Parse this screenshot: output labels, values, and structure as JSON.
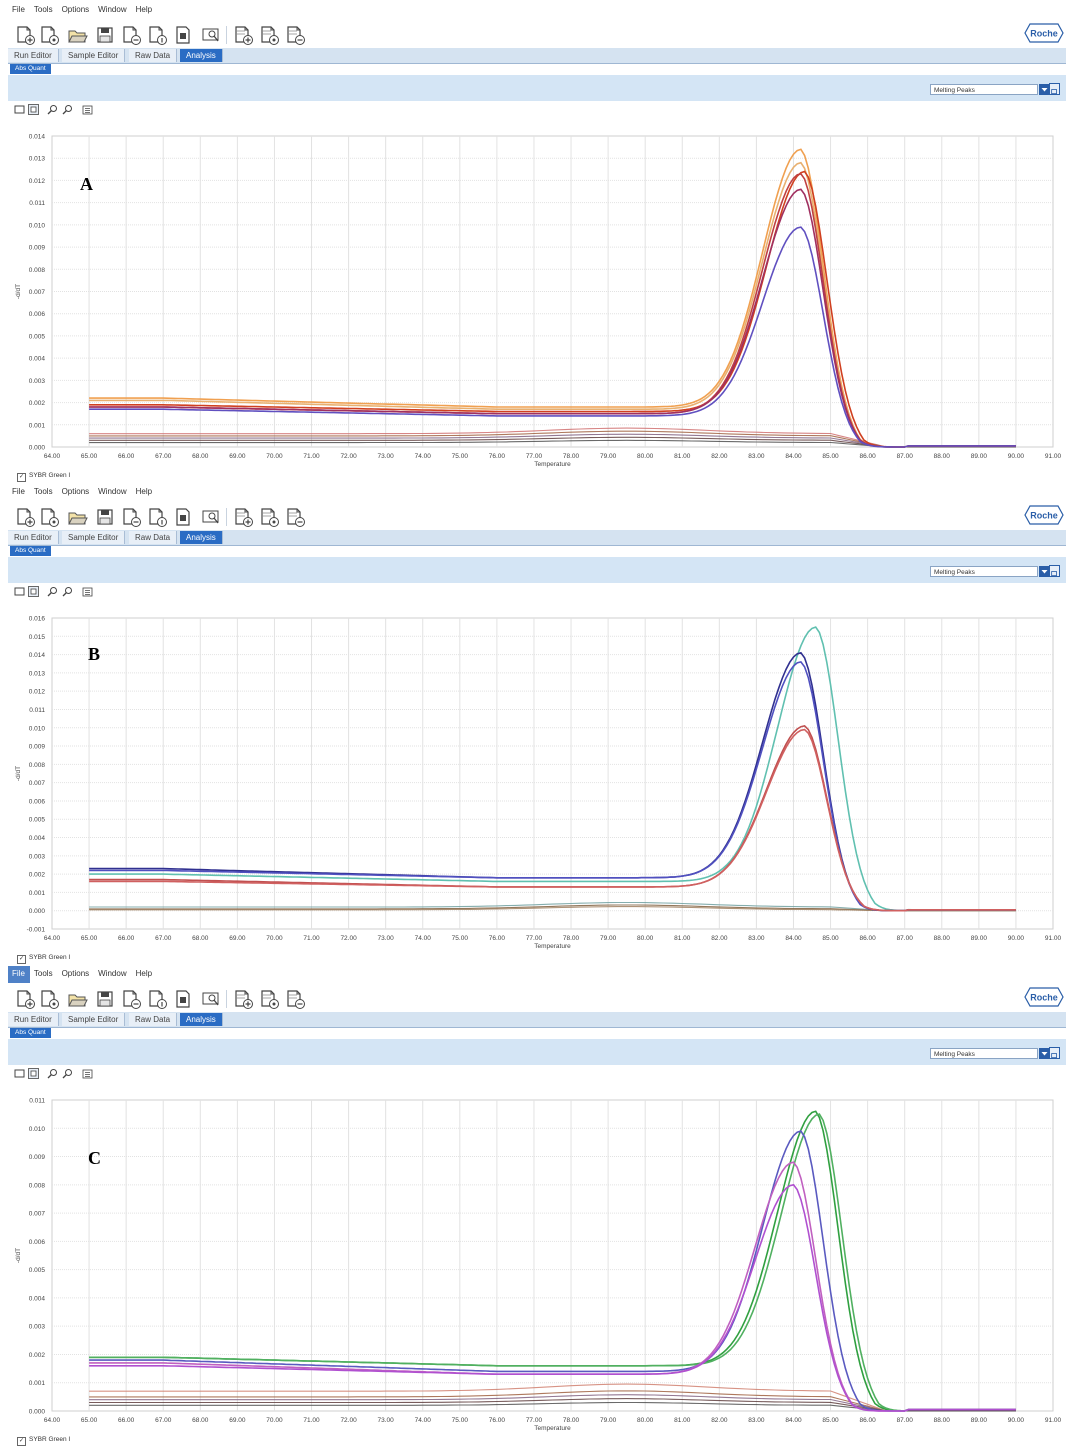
{
  "menu": [
    "File",
    "Tools",
    "Options",
    "Window",
    "Help"
  ],
  "tabs": [
    "Run Editor",
    "Sample Editor",
    "Raw Data",
    "Analysis"
  ],
  "active_tab": "Analysis",
  "subtab": "Abs Quant",
  "roche_logo": "Roche",
  "dropdown_value": "Melting Peaks",
  "legend_label": "SYBR Green I",
  "panels": [
    {
      "letter": "A",
      "ylabel": "-d/dT",
      "xlabel": "Temperature"
    },
    {
      "letter": "B",
      "ylabel": "-d/dT",
      "xlabel": "Temperature"
    },
    {
      "letter": "C",
      "ylabel": "-d/dT",
      "xlabel": "Temperature"
    }
  ],
  "chart_data": [
    {
      "type": "line",
      "xlabel": "Temperature",
      "ylabel": "-d/dT",
      "xlim": [
        64,
        91
      ],
      "ylim": [
        0,
        0.014
      ],
      "xticks": [
        "64.00",
        "65.00",
        "66.00",
        "67.00",
        "68.00",
        "69.00",
        "70.00",
        "71.00",
        "72.00",
        "73.00",
        "74.00",
        "75.00",
        "76.00",
        "77.00",
        "78.00",
        "79.00",
        "80.00",
        "81.00",
        "82.00",
        "83.00",
        "84.00",
        "85.00",
        "86.00",
        "87.00",
        "88.00",
        "89.00",
        "90.00",
        "91.00"
      ],
      "yticks": [
        "0.000",
        "0.001",
        "0.002",
        "0.003",
        "0.004",
        "0.005",
        "0.006",
        "0.007",
        "0.008",
        "0.009",
        "0.010",
        "0.011",
        "0.012",
        "0.013",
        "0.014"
      ],
      "series": [
        {
          "color": "#f0a050",
          "peak_x": 84.2,
          "peak_y": 0.0134,
          "base_y": 0.0022,
          "min_y": 0.0018
        },
        {
          "color": "#e8b070",
          "peak_x": 84.2,
          "peak_y": 0.0128,
          "base_y": 0.0021,
          "min_y": 0.0017
        },
        {
          "color": "#d04020",
          "peak_x": 84.3,
          "peak_y": 0.0124,
          "base_y": 0.0019,
          "min_y": 0.0016
        },
        {
          "color": "#c04040",
          "peak_x": 84.2,
          "peak_y": 0.0123,
          "base_y": 0.0018,
          "min_y": 0.0015
        },
        {
          "color": "#a03060",
          "peak_x": 84.2,
          "peak_y": 0.0116,
          "base_y": 0.0018,
          "min_y": 0.0015
        },
        {
          "color": "#6050c0",
          "peak_x": 84.2,
          "peak_y": 0.0099,
          "base_y": 0.0017,
          "min_y": 0.0014
        }
      ],
      "low_series": [
        {
          "color": "#d07070",
          "level": 0.0006
        },
        {
          "color": "#a06040",
          "level": 0.0005
        },
        {
          "color": "#806080",
          "level": 0.0004
        },
        {
          "color": "#604040",
          "level": 0.0003
        },
        {
          "color": "#505050",
          "level": 0.0002
        }
      ]
    },
    {
      "type": "line",
      "xlabel": "Temperature",
      "ylabel": "-d/dT",
      "xlim": [
        64,
        91
      ],
      "ylim": [
        -0.001,
        0.016
      ],
      "xticks": [
        "64.00",
        "65.00",
        "66.00",
        "67.00",
        "68.00",
        "69.00",
        "70.00",
        "71.00",
        "72.00",
        "73.00",
        "74.00",
        "75.00",
        "76.00",
        "77.00",
        "78.00",
        "79.00",
        "80.00",
        "81.00",
        "82.00",
        "83.00",
        "84.00",
        "85.00",
        "86.00",
        "87.00",
        "88.00",
        "89.00",
        "90.00",
        "91.00"
      ],
      "yticks": [
        "-0.001",
        "0.000",
        "0.001",
        "0.002",
        "0.003",
        "0.004",
        "0.005",
        "0.006",
        "0.007",
        "0.008",
        "0.009",
        "0.010",
        "0.011",
        "0.012",
        "0.013",
        "0.014",
        "0.015",
        "0.016"
      ],
      "series": [
        {
          "color": "#60c0b0",
          "peak_x": 84.6,
          "peak_y": 0.0155,
          "base_y": 0.002,
          "min_y": 0.0016
        },
        {
          "color": "#303090",
          "peak_x": 84.2,
          "peak_y": 0.0141,
          "base_y": 0.0023,
          "min_y": 0.0018
        },
        {
          "color": "#5050c0",
          "peak_x": 84.2,
          "peak_y": 0.0136,
          "base_y": 0.0022,
          "min_y": 0.0018
        },
        {
          "color": "#c05050",
          "peak_x": 84.3,
          "peak_y": 0.0101,
          "base_y": 0.0017,
          "min_y": 0.0013
        },
        {
          "color": "#d06060",
          "peak_x": 84.3,
          "peak_y": 0.0099,
          "base_y": 0.0016,
          "min_y": 0.0013
        }
      ],
      "low_series": [
        {
          "color": "#70a0a0",
          "level": 0.0002
        },
        {
          "color": "#806040",
          "level": 0.0001
        },
        {
          "color": "#a08060",
          "level": 5e-05
        }
      ]
    },
    {
      "type": "line",
      "xlabel": "Temperature",
      "ylabel": "-d/dT",
      "xlim": [
        64,
        91
      ],
      "ylim": [
        0,
        0.011
      ],
      "xticks": [
        "64.00",
        "65.00",
        "66.00",
        "67.00",
        "68.00",
        "69.00",
        "70.00",
        "71.00",
        "72.00",
        "73.00",
        "74.00",
        "75.00",
        "76.00",
        "77.00",
        "78.00",
        "79.00",
        "80.00",
        "81.00",
        "82.00",
        "83.00",
        "84.00",
        "85.00",
        "86.00",
        "87.00",
        "88.00",
        "89.00",
        "90.00",
        "91.00"
      ],
      "yticks": [
        "0.000",
        "0.001",
        "0.002",
        "0.003",
        "0.004",
        "0.005",
        "0.006",
        "0.007",
        "0.008",
        "0.009",
        "0.010",
        "0.011"
      ],
      "series": [
        {
          "color": "#30a040",
          "peak_x": 84.6,
          "peak_y": 0.0106,
          "base_y": 0.0019,
          "min_y": 0.0016
        },
        {
          "color": "#50b060",
          "peak_x": 84.7,
          "peak_y": 0.0105,
          "base_y": 0.0019,
          "min_y": 0.0016
        },
        {
          "color": "#5a5ac0",
          "peak_x": 84.2,
          "peak_y": 0.0099,
          "base_y": 0.0018,
          "min_y": 0.0014
        },
        {
          "color": "#c060c0",
          "peak_x": 84.0,
          "peak_y": 0.0088,
          "base_y": 0.0017,
          "min_y": 0.0013
        },
        {
          "color": "#b050d0",
          "peak_x": 84.0,
          "peak_y": 0.008,
          "base_y": 0.0016,
          "min_y": 0.0013
        }
      ],
      "low_series": [
        {
          "color": "#d08070",
          "level": 0.0007
        },
        {
          "color": "#a06040",
          "level": 0.0005
        },
        {
          "color": "#806080",
          "level": 0.0004
        },
        {
          "color": "#604040",
          "level": 0.0003
        },
        {
          "color": "#505050",
          "level": 0.0002
        }
      ]
    }
  ]
}
